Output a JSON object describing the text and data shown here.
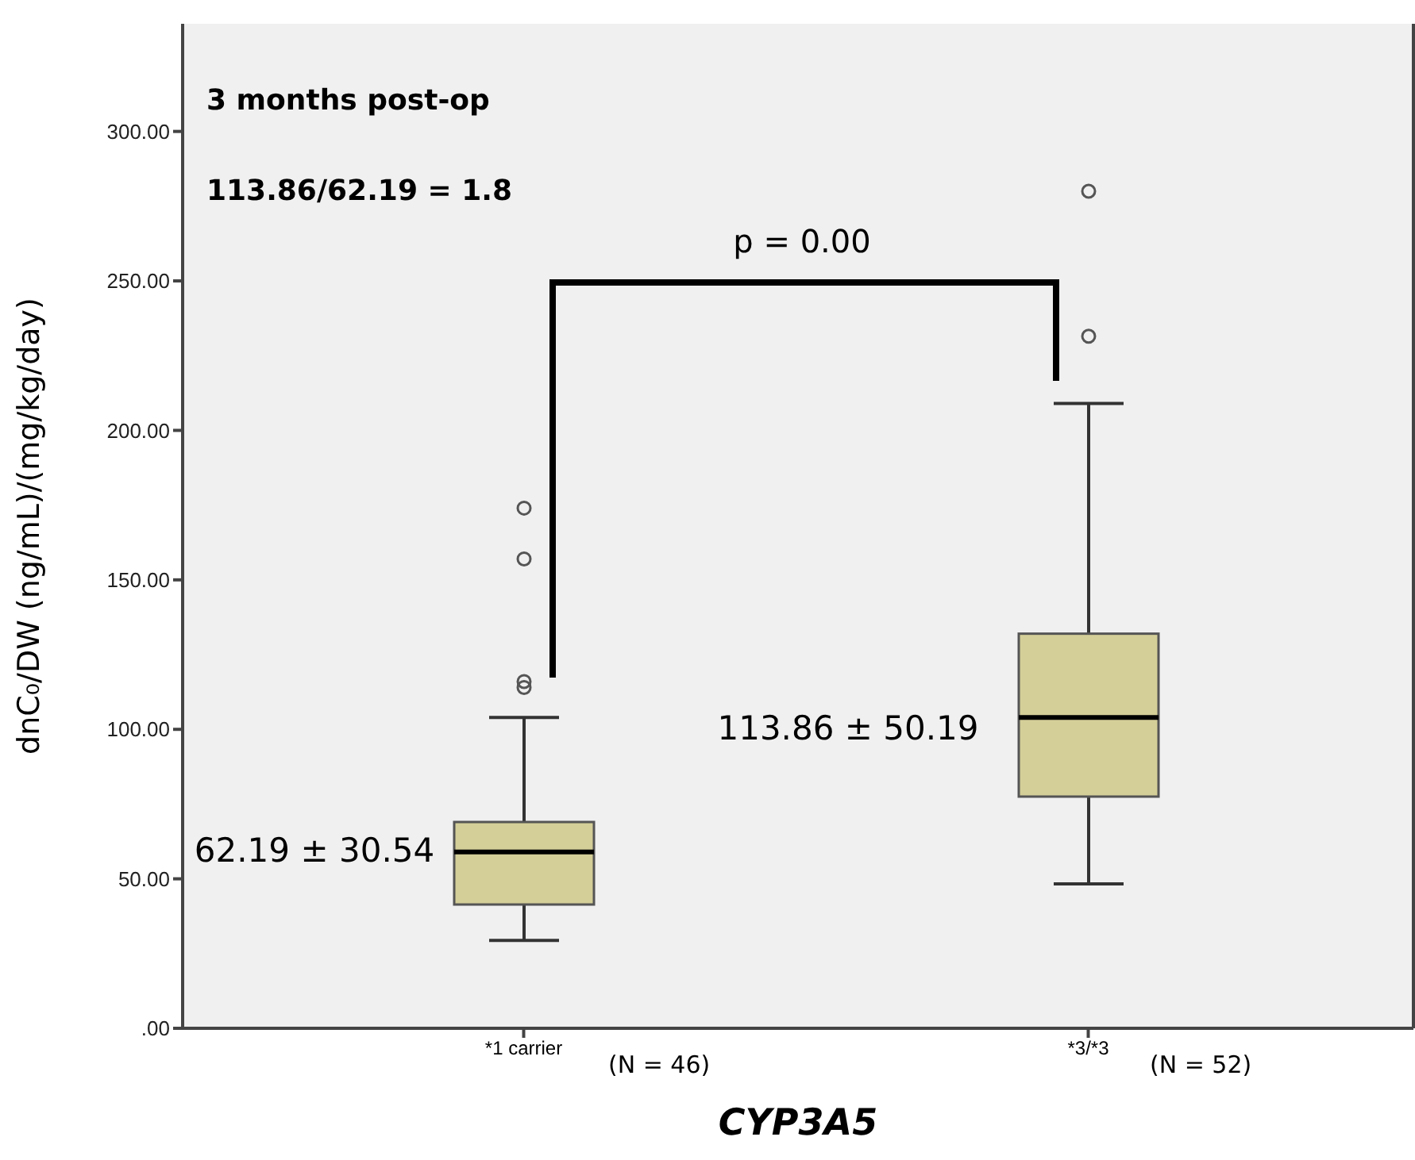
{
  "chart_data": {
    "type": "box",
    "categories": [
      "*1 carrier",
      "*3/*3"
    ],
    "boxes": [
      {
        "low": 29.4,
        "q1": 41.4,
        "median": 59,
        "q3": 69,
        "high": 104,
        "outliers": [
          114,
          116,
          157,
          174
        ]
      },
      {
        "low": 48.3,
        "q1": 77.5,
        "median": 104,
        "q3": 132,
        "high": 209,
        "outliers": [
          231.5,
          280
        ]
      }
    ],
    "color": "#d4cf98",
    "ylim": [
      0,
      336
    ],
    "yticks": [
      {
        "value": 0,
        "label": ".00"
      },
      {
        "value": 50,
        "label": "50.00"
      },
      {
        "value": 100,
        "label": "100.00"
      },
      {
        "value": 150,
        "label": "150.00"
      },
      {
        "value": 200,
        "label": "200.00"
      },
      {
        "value": 250,
        "label": "250.00"
      },
      {
        "value": 300,
        "label": "300.00"
      }
    ],
    "xlabel": "CYP3A5",
    "ylabel": "dnC₀/DW (ng/mL)/(mg/kg/day)",
    "annotations": [
      "3 months post-op",
      "113.86/62.19 = 1.8",
      "p = 0.00",
      "62.19 ± 30.54",
      "113.86 ± 50.19",
      "(N = 46)",
      "(N = 52)"
    ]
  }
}
